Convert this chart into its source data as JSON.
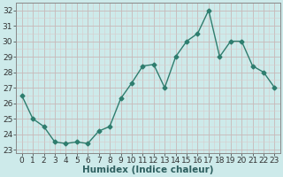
{
  "x": [
    0,
    1,
    2,
    3,
    4,
    5,
    6,
    7,
    8,
    9,
    10,
    11,
    12,
    13,
    14,
    15,
    16,
    17,
    18,
    19,
    20,
    21,
    22,
    23
  ],
  "y": [
    26.5,
    25.0,
    24.5,
    23.5,
    23.4,
    23.5,
    23.4,
    24.2,
    24.5,
    26.3,
    27.3,
    28.4,
    28.5,
    27.0,
    29.0,
    30.0,
    30.5,
    32.0,
    29.0,
    30.0,
    30.0,
    28.4,
    28.0,
    27.0
  ],
  "line_color": "#2e7d6e",
  "bg_color": "#cdeaea",
  "major_grid_color": "#c8b8b8",
  "minor_grid_color": "#d8cccc",
  "xlabel": "Humidex (Indice chaleur)",
  "ylabel_ticks": [
    23,
    24,
    25,
    26,
    27,
    28,
    29,
    30,
    31,
    32
  ],
  "xlim": [
    -0.5,
    23.5
  ],
  "ylim": [
    22.8,
    32.5
  ],
  "xtick_labels": [
    "0",
    "1",
    "2",
    "3",
    "4",
    "5",
    "6",
    "7",
    "8",
    "9",
    "10",
    "11",
    "12",
    "13",
    "14",
    "15",
    "16",
    "17",
    "18",
    "19",
    "20",
    "21",
    "22",
    "23"
  ],
  "marker": "D",
  "marker_size": 2.5,
  "line_width": 1.0,
  "font_size": 6.5,
  "xlabel_fontsize": 7.5
}
